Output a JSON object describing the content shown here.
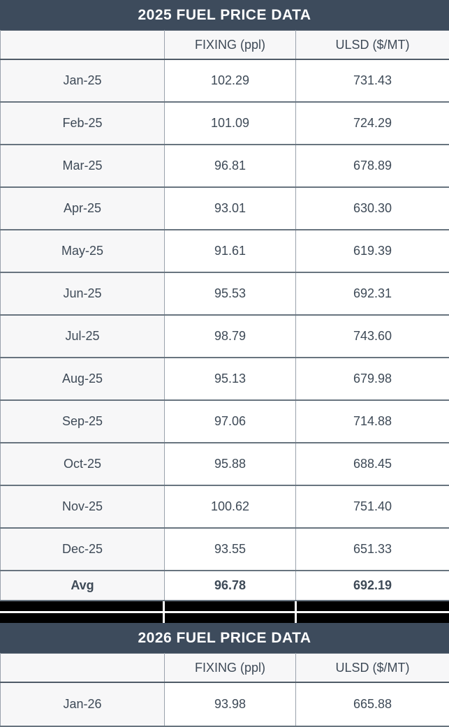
{
  "colors": {
    "header_bg": "#3d4b5c",
    "text": "#3e4a57",
    "alt_row_bg": "#f7f7f8",
    "redaction": "#000000",
    "border_dark": "#68747f",
    "border_light": "#9aa2ac"
  },
  "redacted_band": {
    "rows": 2,
    "cols": 3
  },
  "chart_data": [
    {
      "type": "table",
      "title": "2025 FUEL PRICE DATA",
      "columns": [
        "",
        "FIXING (ppl)",
        "ULSD ($/MT)"
      ],
      "categories": [
        "Jan-25",
        "Feb-25",
        "Mar-25",
        "Apr-25",
        "May-25",
        "Jun-25",
        "Jul-25",
        "Aug-25",
        "Sep-25",
        "Oct-25",
        "Nov-25",
        "Dec-25"
      ],
      "series": [
        {
          "name": "FIXING (ppl)",
          "values": [
            102.29,
            101.09,
            96.81,
            93.01,
            91.61,
            95.53,
            98.79,
            95.13,
            97.06,
            95.88,
            100.62,
            93.55
          ]
        },
        {
          "name": "ULSD ($/MT)",
          "values": [
            731.43,
            724.29,
            678.89,
            630.3,
            619.39,
            692.31,
            743.6,
            679.98,
            714.88,
            688.45,
            751.4,
            651.33
          ]
        }
      ],
      "summary_row": {
        "label": "Avg",
        "values": [
          96.78,
          692.19
        ]
      }
    },
    {
      "type": "table",
      "title": "2026 FUEL PRICE DATA",
      "columns": [
        "",
        "FIXING (ppl)",
        "ULSD ($/MT)"
      ],
      "categories": [
        "Jan-26"
      ],
      "series": [
        {
          "name": "FIXING (ppl)",
          "values": [
            93.98
          ]
        },
        {
          "name": "ULSD ($/MT)",
          "values": [
            665.88
          ]
        }
      ]
    }
  ]
}
